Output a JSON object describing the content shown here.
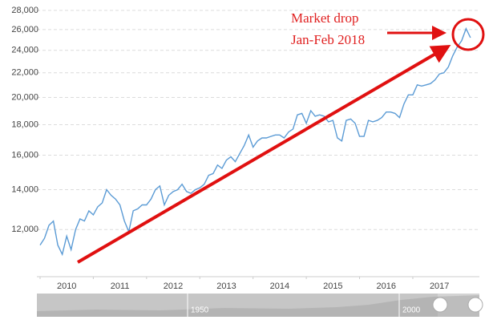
{
  "chart_data": {
    "type": "line",
    "ylim": [
      10000,
      28000
    ],
    "log_scale": true,
    "yticks": [
      {
        "value": 12000,
        "label": "12,000"
      },
      {
        "value": 14000,
        "label": "14,000"
      },
      {
        "value": 16000,
        "label": "16,000"
      },
      {
        "value": 18000,
        "label": "18,000"
      },
      {
        "value": 20000,
        "label": "20,000"
      },
      {
        "value": 22000,
        "label": "22,000"
      },
      {
        "value": 24000,
        "label": "24,000"
      },
      {
        "value": 26000,
        "label": "26,000"
      },
      {
        "value": 28000,
        "label": "28,000"
      }
    ],
    "xlim": [
      2009.94,
      2018.25
    ],
    "xticks": [
      2010,
      2011,
      2012,
      2013,
      2014,
      2015,
      2016,
      2017
    ],
    "grid": true,
    "series": [
      {
        "color": "#5b9bd5",
        "x": [
          "2010-01",
          "2010-02",
          "2010-03",
          "2010-04",
          "2010-05",
          "2010-06",
          "2010-07",
          "2010-08",
          "2010-09",
          "2010-10",
          "2010-11",
          "2010-12",
          "2011-01",
          "2011-02",
          "2011-03",
          "2011-04",
          "2011-05",
          "2011-06",
          "2011-07",
          "2011-08",
          "2011-09",
          "2011-10",
          "2011-11",
          "2011-12",
          "2012-01",
          "2012-02",
          "2012-03",
          "2012-04",
          "2012-05",
          "2012-06",
          "2012-07",
          "2012-08",
          "2012-09",
          "2012-10",
          "2012-11",
          "2012-12",
          "2013-01",
          "2013-02",
          "2013-03",
          "2013-04",
          "2013-05",
          "2013-06",
          "2013-07",
          "2013-08",
          "2013-09",
          "2013-10",
          "2013-11",
          "2013-12",
          "2014-01",
          "2014-02",
          "2014-03",
          "2014-04",
          "2014-05",
          "2014-06",
          "2014-07",
          "2014-08",
          "2014-09",
          "2014-10",
          "2014-11",
          "2014-12",
          "2015-01",
          "2015-02",
          "2015-03",
          "2015-04",
          "2015-05",
          "2015-06",
          "2015-07",
          "2015-08",
          "2015-09",
          "2015-10",
          "2015-11",
          "2015-12",
          "2016-01",
          "2016-02",
          "2016-03",
          "2016-04",
          "2016-05",
          "2016-06",
          "2016-07",
          "2016-08",
          "2016-09",
          "2016-10",
          "2016-11",
          "2016-12",
          "2017-01",
          "2017-02",
          "2017-03",
          "2017-04",
          "2017-05",
          "2017-06",
          "2017-07",
          "2017-08",
          "2017-09",
          "2017-10",
          "2017-11",
          "2017-12",
          "2018-01",
          "2018-02"
        ],
        "values": [
          11300,
          11600,
          12200,
          12400,
          11300,
          10900,
          11700,
          11100,
          12000,
          12500,
          12400,
          12900,
          12700,
          13100,
          13300,
          14000,
          13700,
          13500,
          13200,
          12400,
          11900,
          12900,
          13000,
          13200,
          13200,
          13500,
          14000,
          14200,
          13200,
          13700,
          13900,
          14000,
          14300,
          13900,
          13800,
          14000,
          14100,
          14300,
          14800,
          14900,
          15400,
          15200,
          15700,
          15900,
          15600,
          16100,
          16600,
          17300,
          16500,
          16900,
          17100,
          17100,
          17200,
          17300,
          17300,
          17100,
          17500,
          17700,
          18700,
          18800,
          18100,
          19000,
          18600,
          18700,
          18600,
          18200,
          18300,
          17100,
          16900,
          18300,
          18400,
          18100,
          17200,
          17200,
          18300,
          18200,
          18300,
          18500,
          18900,
          18900,
          18800,
          18500,
          19500,
          20200,
          20200,
          21000,
          20900,
          21000,
          21100,
          21400,
          21900,
          22000,
          22500,
          23500,
          24300,
          24900,
          26100,
          25200
        ]
      }
    ],
    "annotations": [
      "Market drop",
      "Jan-Feb 2018"
    ],
    "navigator": {
      "labels": [
        "1950",
        "2000"
      ]
    }
  }
}
